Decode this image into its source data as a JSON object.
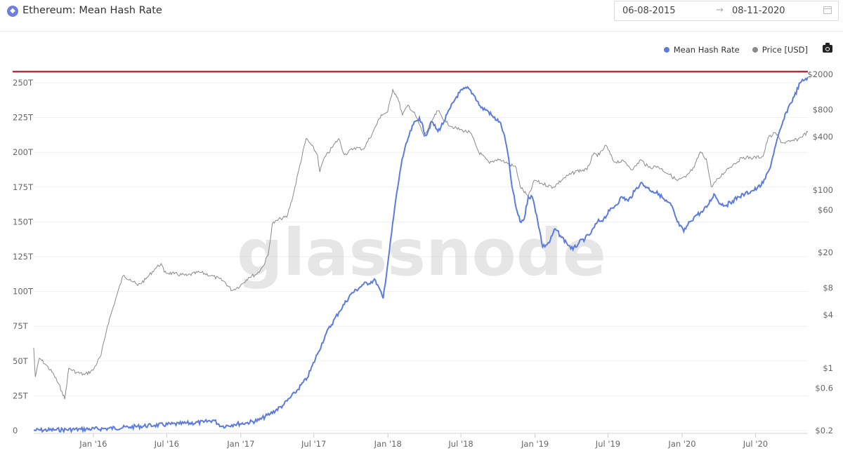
{
  "header": {
    "title": "Ethereum: Mean Hash Rate",
    "icon": "ethereum-icon",
    "date_start": "06-08-2015",
    "date_arrow": "→",
    "date_end": "08-11-2020"
  },
  "watermark": "glassnode",
  "colors": {
    "hash": "#5b7bde",
    "price": "#8a8a8a",
    "threshold": "#c8293a"
  },
  "chart_data": {
    "type": "line",
    "title": "Ethereum: Mean Hash Rate",
    "x_range": [
      "2015-08-06",
      "2020-11-08"
    ],
    "x_ticks": [
      "Jan '16",
      "Jul '16",
      "Jan '17",
      "Jul '17",
      "Jan '18",
      "Jul '18",
      "Jan '19",
      "Jul '19",
      "Jan '20",
      "Jul '20"
    ],
    "y_left": {
      "ticks": [
        "0",
        "25T",
        "50T",
        "75T",
        "100T",
        "125T",
        "150T",
        "175T",
        "200T",
        "225T",
        "250T"
      ],
      "range": [
        0,
        250
      ],
      "unit": "TH/s"
    },
    "y_right": {
      "ticks": [
        "$0.2",
        "$0.6",
        "$1",
        "$4",
        "$8",
        "$20",
        "$60",
        "$100",
        "$400",
        "$800",
        "$2000"
      ],
      "scale": "log",
      "range": [
        0.2,
        2000
      ]
    },
    "horizontal_line": {
      "axis": "left",
      "value": 258
    },
    "legend": {
      "position": "top-right"
    },
    "grid": true,
    "series": [
      {
        "name": "Mean Hash Rate",
        "axis": "left",
        "points": [
          [
            "2015-08-06",
            0.2
          ],
          [
            "2015-10-01",
            0.5
          ],
          [
            "2015-12-01",
            0.9
          ],
          [
            "2016-02-01",
            1.4
          ],
          [
            "2016-04-01",
            2.5
          ],
          [
            "2016-06-01",
            3.8
          ],
          [
            "2016-08-01",
            4.8
          ],
          [
            "2016-10-01",
            6.0
          ],
          [
            "2016-10-25",
            7.5
          ],
          [
            "2016-11-15",
            3.0
          ],
          [
            "2016-12-15",
            4.5
          ],
          [
            "2017-01-15",
            5.5
          ],
          [
            "2017-02-15",
            7.5
          ],
          [
            "2017-03-15",
            12
          ],
          [
            "2017-04-15",
            18
          ],
          [
            "2017-05-15",
            27
          ],
          [
            "2017-06-15",
            38
          ],
          [
            "2017-07-10",
            55
          ],
          [
            "2017-08-01",
            70
          ],
          [
            "2017-09-01",
            85
          ],
          [
            "2017-10-01",
            98
          ],
          [
            "2017-11-01",
            105
          ],
          [
            "2017-12-01",
            108
          ],
          [
            "2017-12-20",
            95
          ],
          [
            "2018-01-05",
            130
          ],
          [
            "2018-01-20",
            165
          ],
          [
            "2018-02-05",
            195
          ],
          [
            "2018-02-20",
            210
          ],
          [
            "2018-03-05",
            220
          ],
          [
            "2018-03-20",
            225
          ],
          [
            "2018-04-05",
            212
          ],
          [
            "2018-04-20",
            222
          ],
          [
            "2018-05-05",
            215
          ],
          [
            "2018-05-20",
            222
          ],
          [
            "2018-06-05",
            232
          ],
          [
            "2018-06-20",
            240
          ],
          [
            "2018-07-05",
            245
          ],
          [
            "2018-07-20",
            246
          ],
          [
            "2018-08-05",
            240
          ],
          [
            "2018-08-20",
            232
          ],
          [
            "2018-09-05",
            230
          ],
          [
            "2018-09-20",
            225
          ],
          [
            "2018-10-05",
            222
          ],
          [
            "2018-10-15",
            214
          ],
          [
            "2018-10-25",
            200
          ],
          [
            "2018-11-05",
            175
          ],
          [
            "2018-11-15",
            160
          ],
          [
            "2018-11-25",
            150
          ],
          [
            "2018-12-05",
            152
          ],
          [
            "2018-12-15",
            168
          ],
          [
            "2018-12-25",
            168
          ],
          [
            "2019-01-05",
            155
          ],
          [
            "2019-01-20",
            132
          ],
          [
            "2019-02-05",
            135
          ],
          [
            "2019-02-20",
            145
          ],
          [
            "2019-03-05",
            140
          ],
          [
            "2019-03-20",
            135
          ],
          [
            "2019-04-05",
            130
          ],
          [
            "2019-04-20",
            135
          ],
          [
            "2019-05-05",
            138
          ],
          [
            "2019-05-20",
            142
          ],
          [
            "2019-06-05",
            150
          ],
          [
            "2019-06-20",
            152
          ],
          [
            "2019-07-05",
            158
          ],
          [
            "2019-07-20",
            162
          ],
          [
            "2019-08-05",
            168
          ],
          [
            "2019-08-20",
            165
          ],
          [
            "2019-09-05",
            172
          ],
          [
            "2019-09-20",
            178
          ],
          [
            "2019-10-05",
            175
          ],
          [
            "2019-10-20",
            172
          ],
          [
            "2019-11-05",
            170
          ],
          [
            "2019-11-20",
            165
          ],
          [
            "2019-12-05",
            162
          ],
          [
            "2019-12-20",
            150
          ],
          [
            "2020-01-05",
            143
          ],
          [
            "2020-01-20",
            150
          ],
          [
            "2020-02-05",
            155
          ],
          [
            "2020-02-20",
            157
          ],
          [
            "2020-03-05",
            162
          ],
          [
            "2020-03-20",
            170
          ],
          [
            "2020-04-05",
            163
          ],
          [
            "2020-04-20",
            162
          ],
          [
            "2020-05-05",
            165
          ],
          [
            "2020-05-20",
            168
          ],
          [
            "2020-06-05",
            170
          ],
          [
            "2020-06-20",
            172
          ],
          [
            "2020-07-05",
            174
          ],
          [
            "2020-07-20",
            178
          ],
          [
            "2020-08-05",
            188
          ],
          [
            "2020-08-20",
            205
          ],
          [
            "2020-09-05",
            220
          ],
          [
            "2020-09-20",
            232
          ],
          [
            "2020-10-05",
            240
          ],
          [
            "2020-10-20",
            250
          ],
          [
            "2020-11-08",
            254
          ]
        ]
      },
      {
        "name": "Price [USD]",
        "axis": "right",
        "points": [
          [
            "2015-08-06",
            1.7
          ],
          [
            "2015-08-10",
            0.8
          ],
          [
            "2015-08-20",
            1.3
          ],
          [
            "2015-09-05",
            1.1
          ],
          [
            "2015-09-25",
            0.85
          ],
          [
            "2015-10-15",
            0.55
          ],
          [
            "2015-10-22",
            0.45
          ],
          [
            "2015-11-01",
            1.0
          ],
          [
            "2015-11-20",
            0.9
          ],
          [
            "2015-12-10",
            0.85
          ],
          [
            "2015-12-31",
            0.95
          ],
          [
            "2016-01-20",
            1.4
          ],
          [
            "2016-02-05",
            3.0
          ],
          [
            "2016-02-20",
            5.0
          ],
          [
            "2016-03-01",
            7.0
          ],
          [
            "2016-03-15",
            11
          ],
          [
            "2016-04-01",
            10
          ],
          [
            "2016-04-20",
            8.5
          ],
          [
            "2016-05-10",
            10
          ],
          [
            "2016-06-01",
            13
          ],
          [
            "2016-06-17",
            15
          ],
          [
            "2016-06-25",
            12
          ],
          [
            "2016-07-20",
            11.5
          ],
          [
            "2016-08-20",
            11
          ],
          [
            "2016-09-20",
            12
          ],
          [
            "2016-10-20",
            11
          ],
          [
            "2016-11-20",
            9.5
          ],
          [
            "2016-12-10",
            7.5
          ],
          [
            "2016-12-31",
            8.5
          ],
          [
            "2017-01-20",
            10.5
          ],
          [
            "2017-02-10",
            11.5
          ],
          [
            "2017-02-25",
            14
          ],
          [
            "2017-03-10",
            19
          ],
          [
            "2017-03-20",
            42
          ],
          [
            "2017-04-10",
            48
          ],
          [
            "2017-04-25",
            50
          ],
          [
            "2017-05-10",
            85
          ],
          [
            "2017-05-25",
            170
          ],
          [
            "2017-06-12",
            380
          ],
          [
            "2017-06-25",
            320
          ],
          [
            "2017-07-10",
            250
          ],
          [
            "2017-07-16",
            160
          ],
          [
            "2017-07-25",
            220
          ],
          [
            "2017-08-15",
            300
          ],
          [
            "2017-09-01",
            380
          ],
          [
            "2017-09-15",
            250
          ],
          [
            "2017-10-10",
            300
          ],
          [
            "2017-11-01",
            290
          ],
          [
            "2017-11-25",
            450
          ],
          [
            "2017-12-15",
            700
          ],
          [
            "2017-12-31",
            750
          ],
          [
            "2018-01-13",
            1350
          ],
          [
            "2018-01-25",
            1100
          ],
          [
            "2018-02-06",
            700
          ],
          [
            "2018-02-20",
            900
          ],
          [
            "2018-03-10",
            700
          ],
          [
            "2018-04-01",
            400
          ],
          [
            "2018-04-20",
            600
          ],
          [
            "2018-05-05",
            780
          ],
          [
            "2018-05-25",
            580
          ],
          [
            "2018-06-15",
            500
          ],
          [
            "2018-07-05",
            470
          ],
          [
            "2018-07-25",
            440
          ],
          [
            "2018-08-14",
            270
          ],
          [
            "2018-09-10",
            200
          ],
          [
            "2018-10-01",
            225
          ],
          [
            "2018-10-20",
            205
          ],
          [
            "2018-11-15",
            180
          ],
          [
            "2018-11-25",
            110
          ],
          [
            "2018-12-15",
            84
          ],
          [
            "2018-12-31",
            130
          ],
          [
            "2019-01-15",
            120
          ],
          [
            "2019-02-15",
            108
          ],
          [
            "2019-03-15",
            138
          ],
          [
            "2019-04-15",
            165
          ],
          [
            "2019-05-10",
            170
          ],
          [
            "2019-05-25",
            250
          ],
          [
            "2019-06-10",
            250
          ],
          [
            "2019-06-26",
            320
          ],
          [
            "2019-07-15",
            210
          ],
          [
            "2019-08-10",
            210
          ],
          [
            "2019-09-01",
            170
          ],
          [
            "2019-09-20",
            220
          ],
          [
            "2019-10-10",
            180
          ],
          [
            "2019-11-01",
            185
          ],
          [
            "2019-12-01",
            150
          ],
          [
            "2019-12-20",
            128
          ],
          [
            "2020-01-10",
            140
          ],
          [
            "2020-01-31",
            180
          ],
          [
            "2020-02-15",
            270
          ],
          [
            "2020-03-01",
            225
          ],
          [
            "2020-03-13",
            110
          ],
          [
            "2020-04-01",
            135
          ],
          [
            "2020-04-20",
            170
          ],
          [
            "2020-05-10",
            200
          ],
          [
            "2020-06-01",
            235
          ],
          [
            "2020-06-25",
            230
          ],
          [
            "2020-07-20",
            240
          ],
          [
            "2020-08-01",
            385
          ],
          [
            "2020-08-20",
            440
          ],
          [
            "2020-09-05",
            340
          ],
          [
            "2020-09-25",
            350
          ],
          [
            "2020-10-15",
            375
          ],
          [
            "2020-11-08",
            450
          ]
        ]
      }
    ]
  }
}
